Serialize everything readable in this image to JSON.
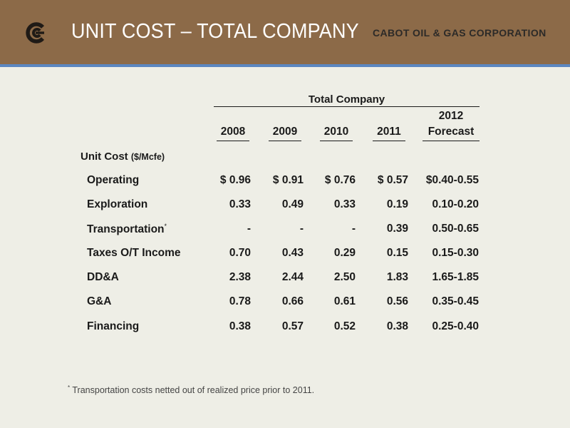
{
  "slide": {
    "title": "UNIT COST – TOTAL COMPANY",
    "company": "CABOT OIL & GAS CORPORATION",
    "colors": {
      "header": "#8c6a48",
      "rule": "#5b86c0",
      "background": "#eeeee6"
    }
  },
  "table": {
    "group_label": "Total Company",
    "columns": [
      {
        "line1": "",
        "line2": "2008"
      },
      {
        "line1": "",
        "line2": "2009"
      },
      {
        "line1": "",
        "line2": "2010"
      },
      {
        "line1": "",
        "line2": "2011"
      },
      {
        "line1": "2012",
        "line2": "Forecast"
      }
    ],
    "section_label": "Unit Cost",
    "section_unit": "($/Mcfe)",
    "rows": [
      {
        "label": "Operating",
        "footnote_mark": "",
        "values": [
          "$ 0.96",
          "$ 0.91",
          "$ 0.76",
          "$ 0.57",
          "$0.40-0.55"
        ]
      },
      {
        "label": "Exploration",
        "footnote_mark": "",
        "values": [
          "0.33",
          "0.49",
          "0.33",
          "0.19",
          "0.10-0.20"
        ]
      },
      {
        "label": "Transportation",
        "footnote_mark": "*",
        "values": [
          "-",
          "-",
          "-",
          "0.39",
          "0.50-0.65"
        ]
      },
      {
        "label": "Taxes O/T Income",
        "footnote_mark": "",
        "values": [
          "0.70",
          "0.43",
          "0.29",
          "0.15",
          "0.15-0.30"
        ]
      },
      {
        "label": "DD&A",
        "footnote_mark": "",
        "values": [
          "2.38",
          "2.44",
          "2.50",
          "1.83",
          "1.65-1.85"
        ]
      },
      {
        "label": "G&A",
        "footnote_mark": "",
        "values": [
          "0.78",
          "0.66",
          "0.61",
          "0.56",
          "0.35-0.45"
        ]
      },
      {
        "label": "Financing",
        "footnote_mark": "",
        "values": [
          "0.38",
          "0.57",
          "0.52",
          "0.38",
          "0.25-0.40"
        ]
      }
    ]
  },
  "footnote": {
    "mark": "*",
    "text": "Transportation costs netted out of realized price prior to 2011."
  }
}
